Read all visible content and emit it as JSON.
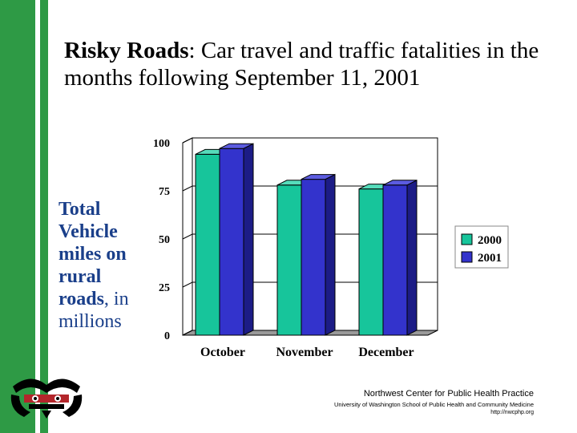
{
  "colors": {
    "green": "#2e9a45",
    "series_2000": "#17c59b",
    "series_2001": "#3333cc"
  },
  "title": {
    "bold": "Risky Roads",
    "rest": ": Car travel and traffic fatalities in the months following September 11, 2001"
  },
  "side_label": {
    "bold": "Total Vehicle miles on rural roads",
    "rest": ", in millions"
  },
  "footer": {
    "org": "Northwest Center for Public Health Practice",
    "school": "University of Washington School of Public Health and Community Medicine",
    "url": "http://nwcphp.org"
  },
  "chart_data": {
    "type": "bar",
    "style": "3d",
    "categories": [
      "October",
      "November",
      "December"
    ],
    "series": [
      {
        "name": "2000",
        "values": [
          94,
          78,
          76
        ]
      },
      {
        "name": "2001",
        "values": [
          97,
          81,
          78
        ]
      }
    ],
    "ylim": [
      0,
      100
    ],
    "yticks": [
      "0",
      "25",
      "50",
      "75",
      "100"
    ],
    "xlabel": "",
    "ylabel": "",
    "title": "",
    "legend_position": "right",
    "grid": true
  }
}
